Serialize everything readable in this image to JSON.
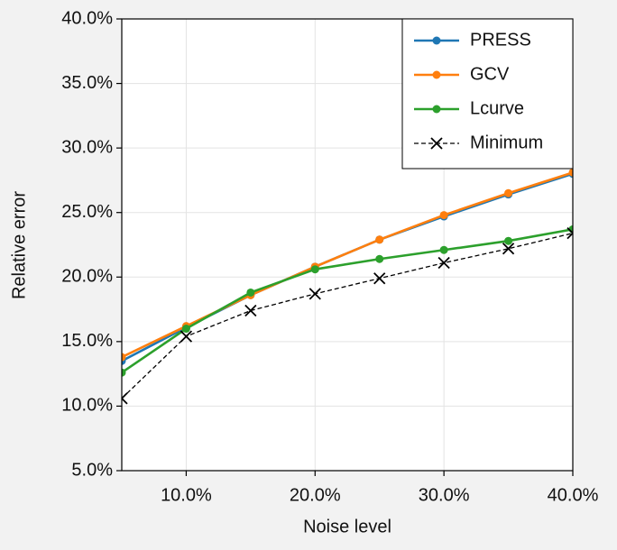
{
  "chart_data": {
    "type": "line",
    "xlabel": "Noise level",
    "ylabel": "Relative error",
    "x": [
      5,
      10,
      15,
      20,
      25,
      30,
      35,
      40
    ],
    "series": [
      {
        "name": "PRESS",
        "color": "#1f77b4",
        "marker": "o",
        "linestyle": "solid",
        "values": [
          13.5,
          16.1,
          18.6,
          20.8,
          22.9,
          24.7,
          26.4,
          28.0
        ]
      },
      {
        "name": "GCV",
        "color": "#ff7f0e",
        "marker": "o",
        "linestyle": "solid",
        "values": [
          13.8,
          16.2,
          18.6,
          20.8,
          22.9,
          24.8,
          26.5,
          28.1
        ]
      },
      {
        "name": "Lcurve",
        "color": "#2ca02c",
        "marker": "o",
        "linestyle": "solid",
        "values": [
          12.6,
          16.0,
          18.8,
          20.6,
          21.4,
          22.1,
          22.8,
          23.7
        ]
      },
      {
        "name": "Minimum",
        "color": "#000000",
        "marker": "x",
        "linestyle": "dashed",
        "values": [
          10.6,
          15.4,
          17.4,
          18.7,
          19.9,
          21.1,
          22.2,
          23.4
        ]
      }
    ],
    "xlim": [
      5,
      40
    ],
    "xticks": [
      {
        "value": 10,
        "label": "10.0%"
      },
      {
        "value": 20,
        "label": "20.0%"
      },
      {
        "value": 30,
        "label": "30.0%"
      },
      {
        "value": 40,
        "label": "40.0%"
      }
    ],
    "ylim": [
      5,
      40
    ],
    "yticks": [
      {
        "value": 5,
        "label": "5.0%"
      },
      {
        "value": 10,
        "label": "10.0%"
      },
      {
        "value": 15,
        "label": "15.0%"
      },
      {
        "value": 20,
        "label": "20.0%"
      },
      {
        "value": 25,
        "label": "25.0%"
      },
      {
        "value": 30,
        "label": "30.0%"
      },
      {
        "value": 35,
        "label": "35.0%"
      },
      {
        "value": 40,
        "label": "40.0%"
      }
    ],
    "grid": true,
    "legend": "upper right"
  }
}
